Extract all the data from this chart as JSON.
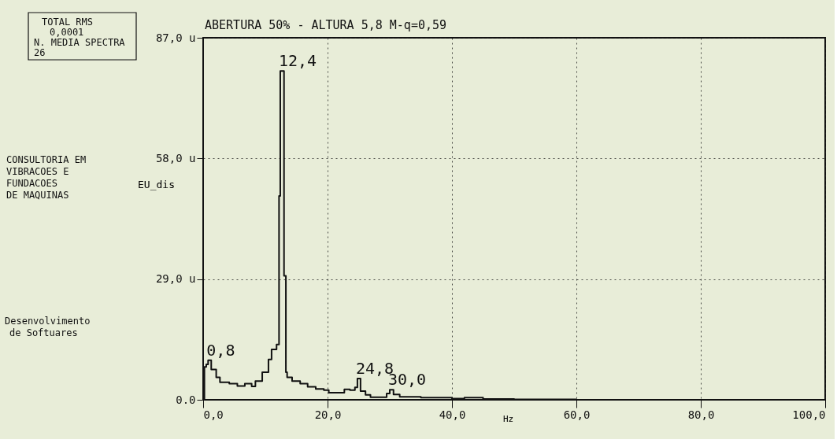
{
  "chart_data": {
    "type": "step",
    "title": "ABERTURA 50% - ALTURA 5,8 M-q=0,59",
    "xlabel": "Hz",
    "ylabel": "EU_dis",
    "x": [
      0.0,
      0.2,
      0.5,
      0.8,
      1.3,
      2.1,
      2.7,
      4.2,
      5.5,
      6.7,
      7.8,
      8.4,
      9.5,
      10.5,
      11.0,
      11.8,
      12.2,
      12.4,
      13.0,
      13.3,
      13.5,
      14.3,
      15.6,
      16.8,
      18.1,
      19.4,
      20.2,
      22.3,
      22.7,
      23.6,
      24.4,
      24.8,
      25.3,
      26.1,
      26.9,
      29.5,
      30.0,
      30.6,
      31.6,
      35.0,
      40.0,
      42.0,
      45.0,
      50.0,
      60.0,
      100.0
    ],
    "series": [
      {
        "color": "#111111",
        "values": [
          0.0,
          7.9,
          8.5,
          9.5,
          7.3,
          5.4,
          4.2,
          3.9,
          3.3,
          3.9,
          3.2,
          4.5,
          6.6,
          9.7,
          12.1,
          13.3,
          49.0,
          79.0,
          29.8,
          6.6,
          5.4,
          4.5,
          3.9,
          3.1,
          2.6,
          2.3,
          1.7,
          1.7,
          2.5,
          2.3,
          3.0,
          5.1,
          2.1,
          1.2,
          0.6,
          1.5,
          2.4,
          1.3,
          0.7,
          0.5,
          0.3,
          0.5,
          0.2,
          0.1,
          0.0,
          0.0
        ]
      }
    ],
    "xlim": [
      0,
      100
    ],
    "xticks": [
      {
        "value": 0,
        "label": "0,0"
      },
      {
        "value": 20,
        "label": "20,0"
      },
      {
        "value": 40,
        "label": "40,0"
      },
      {
        "value": 60,
        "label": "60,0"
      },
      {
        "value": 80,
        "label": "80,0"
      },
      {
        "value": 100,
        "label": "100,0"
      }
    ],
    "ylim": [
      0,
      87
    ],
    "yticks": [
      {
        "value": 0,
        "label": "0.0"
      },
      {
        "value": 29,
        "label": "29,0 u"
      },
      {
        "value": 58,
        "label": "58,0 u"
      },
      {
        "value": 87,
        "label": "87,0 u"
      }
    ],
    "grid": true,
    "line_style": "solid",
    "marker": "none",
    "annotations": [
      "TOTAL RMS",
      "0,0001",
      "N. MEDIA SPECTRA",
      "26",
      "CONSULTORIA EM",
      "VIBRACOES E",
      "FUNDACOES",
      "DE MAQUINAS",
      "Desenvolvimento",
      "de Softuares",
      {
        "text": "0,8",
        "x": 0.8,
        "y": 9.5
      },
      {
        "text": "12,4",
        "x": 12.4,
        "y": 79.0
      },
      {
        "text": "24,8",
        "x": 24.8,
        "y": 5.1
      },
      {
        "text": "30,0",
        "x": 30.0,
        "y": 2.4
      }
    ]
  }
}
